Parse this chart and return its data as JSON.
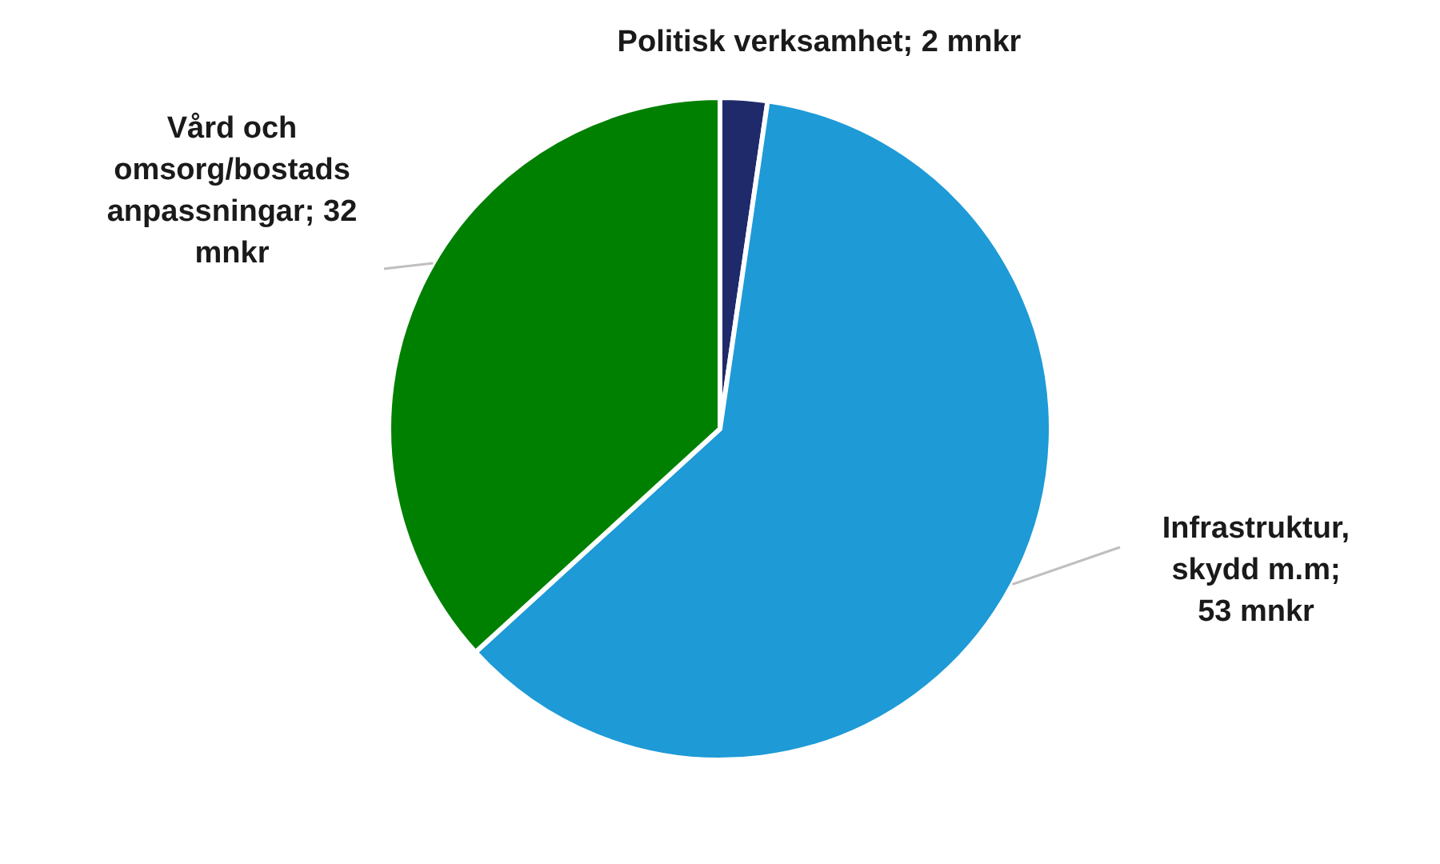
{
  "chart_data": {
    "type": "pie",
    "categories": [
      "Politisk verksamhet; 2 mnkr",
      "Infrastruktur, skydd m.m; 53 mnkr",
      "Vård och omsorg/bostads anpassningar; 32 mnkr"
    ],
    "values": [
      2,
      53,
      32
    ],
    "colors": [
      "#1f2a6b",
      "#1e9ad6",
      "#008000"
    ]
  }
}
